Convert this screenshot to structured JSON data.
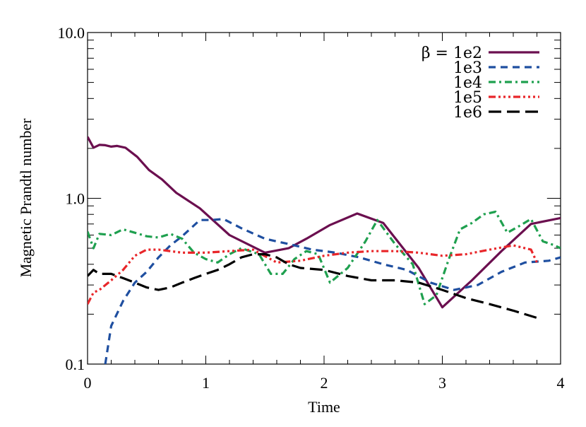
{
  "chart_data": {
    "type": "line",
    "xlabel": "Time",
    "ylabel": "Magnetic Prandtl number",
    "xlim": [
      0,
      4
    ],
    "ylim": [
      0.1,
      10.0
    ],
    "yscale": "log",
    "x_ticks": [
      0,
      1,
      2,
      3,
      4
    ],
    "x_tick_labels": [
      "0",
      "1",
      "2",
      "3",
      "4"
    ],
    "y_ticks": [
      0.1,
      1.0,
      10.0
    ],
    "y_tick_labels": [
      "0.1",
      "1.0",
      "10.0"
    ],
    "legend_position": "top-right",
    "series": [
      {
        "name": "β = 1e2",
        "color": "#6b0f4f",
        "dash": "solid",
        "x": [
          0,
          0.05,
          0.1,
          0.15,
          0.2,
          0.25,
          0.32,
          0.42,
          0.52,
          0.63,
          0.75,
          0.95,
          1.2,
          1.5,
          1.7,
          1.85,
          2.05,
          2.28,
          2.5,
          2.8,
          3.0,
          3.25,
          3.5,
          3.75,
          4.0
        ],
        "y": [
          2.35,
          2.02,
          2.1,
          2.09,
          2.05,
          2.07,
          2.02,
          1.78,
          1.48,
          1.3,
          1.08,
          0.87,
          0.6,
          0.47,
          0.5,
          0.57,
          0.69,
          0.81,
          0.71,
          0.38,
          0.22,
          0.32,
          0.48,
          0.7,
          0.76
        ]
      },
      {
        "name": "1e3",
        "color": "#1f4fa0",
        "dash": "dashed",
        "x": [
          0.15,
          0.2,
          0.3,
          0.4,
          0.5,
          0.6,
          0.7,
          0.8,
          0.95,
          1.05,
          1.15,
          1.3,
          1.5,
          1.7,
          1.9,
          2.1,
          2.3,
          2.5,
          2.7,
          2.9,
          3.1,
          3.3,
          3.5,
          3.7,
          3.9,
          4.0
        ],
        "y": [
          0.1,
          0.17,
          0.24,
          0.31,
          0.36,
          0.44,
          0.52,
          0.59,
          0.74,
          0.74,
          0.75,
          0.66,
          0.57,
          0.53,
          0.49,
          0.47,
          0.44,
          0.4,
          0.37,
          0.31,
          0.28,
          0.3,
          0.36,
          0.41,
          0.42,
          0.44
        ]
      },
      {
        "name": "1e4",
        "color": "#1fa04f",
        "dash": "dashdot",
        "x": [
          0,
          0.05,
          0.1,
          0.2,
          0.3,
          0.4,
          0.5,
          0.6,
          0.7,
          0.8,
          0.9,
          1.0,
          1.1,
          1.2,
          1.3,
          1.45,
          1.55,
          1.65,
          1.75,
          1.85,
          1.95,
          2.05,
          2.2,
          2.35,
          2.45,
          2.6,
          2.75,
          2.85,
          2.95,
          3.05,
          3.15,
          3.25,
          3.35,
          3.45,
          3.55,
          3.65,
          3.75,
          3.85,
          3.95,
          4.0
        ],
        "y": [
          0.63,
          0.5,
          0.61,
          0.6,
          0.65,
          0.62,
          0.59,
          0.58,
          0.61,
          0.57,
          0.47,
          0.43,
          0.41,
          0.46,
          0.5,
          0.46,
          0.35,
          0.35,
          0.43,
          0.48,
          0.46,
          0.31,
          0.38,
          0.55,
          0.74,
          0.53,
          0.4,
          0.23,
          0.26,
          0.42,
          0.65,
          0.71,
          0.8,
          0.83,
          0.62,
          0.68,
          0.75,
          0.55,
          0.52,
          0.5
        ]
      },
      {
        "name": "1e5",
        "color": "#e8262a",
        "dash": "dashdotdotdot",
        "x": [
          0,
          0.05,
          0.1,
          0.2,
          0.3,
          0.4,
          0.5,
          0.6,
          0.8,
          1.0,
          1.2,
          1.4,
          1.6,
          1.8,
          2.0,
          2.2,
          2.4,
          2.6,
          2.8,
          3.0,
          3.2,
          3.4,
          3.6,
          3.75,
          3.8
        ],
        "y": [
          0.23,
          0.27,
          0.28,
          0.32,
          0.37,
          0.45,
          0.49,
          0.49,
          0.47,
          0.47,
          0.48,
          0.49,
          0.41,
          0.42,
          0.45,
          0.47,
          0.48,
          0.48,
          0.47,
          0.45,
          0.46,
          0.49,
          0.52,
          0.49,
          0.41
        ]
      },
      {
        "name": "1e6",
        "color": "#000000",
        "dash": "longdash",
        "x": [
          0,
          0.05,
          0.1,
          0.2,
          0.3,
          0.4,
          0.5,
          0.6,
          0.7,
          0.8,
          0.9,
          1.0,
          1.1,
          1.2,
          1.3,
          1.4,
          1.5,
          1.6,
          1.7,
          1.8,
          2.0,
          2.2,
          2.4,
          2.6,
          2.8,
          3.0,
          3.2,
          3.4,
          3.6,
          3.8
        ],
        "y": [
          0.34,
          0.37,
          0.35,
          0.35,
          0.33,
          0.31,
          0.29,
          0.28,
          0.29,
          0.31,
          0.33,
          0.35,
          0.37,
          0.4,
          0.44,
          0.46,
          0.46,
          0.44,
          0.4,
          0.38,
          0.37,
          0.34,
          0.32,
          0.32,
          0.31,
          0.28,
          0.25,
          0.23,
          0.21,
          0.19
        ]
      }
    ]
  }
}
